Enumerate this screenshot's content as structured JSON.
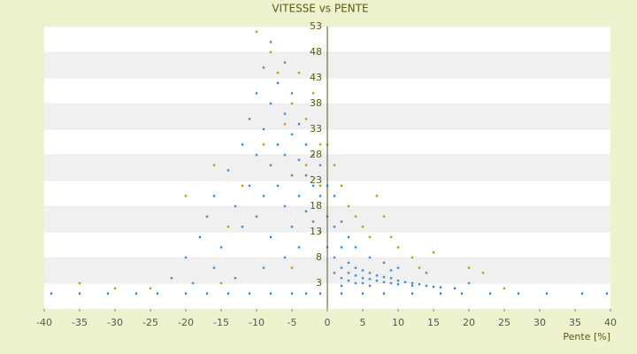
{
  "chart_data": {
    "type": "scatter",
    "title": "VITESSE vs PENTE",
    "x_label": "Pente [%]",
    "xlim": [
      -40,
      40
    ],
    "xticks": [
      -40,
      -35,
      -30,
      -25,
      -20,
      -15,
      -10,
      -5,
      0,
      5,
      10,
      15,
      20,
      25,
      30,
      35,
      40
    ],
    "ylim": [
      -2,
      53
    ],
    "yticks": [
      3,
      8,
      13,
      18,
      23,
      28,
      33,
      38,
      43,
      48,
      53
    ],
    "grid": true,
    "series": [
      {
        "color": "#3b8ad8",
        "x": [
          -39,
          -35,
          -31,
          -27,
          -24,
          -20,
          -17,
          -14,
          -11,
          -8,
          -5,
          -3,
          -1,
          2,
          5,
          8,
          12,
          16,
          19,
          23,
          27,
          31,
          36,
          39.5,
          -20,
          -18,
          -17,
          -16,
          -15,
          -14,
          -13,
          -12,
          -12,
          -11,
          -11,
          -10,
          -10,
          -10,
          -9,
          -9,
          -9,
          -8,
          -8,
          -8,
          -8,
          -7,
          -7,
          -7,
          -6,
          -6,
          -6,
          -6,
          -5,
          -5,
          -5,
          -5,
          -4,
          -4,
          -4,
          -3,
          -3,
          -3,
          -2,
          -2,
          -2,
          -1,
          -1,
          -1,
          0,
          0,
          0,
          1,
          1,
          1,
          2,
          2,
          -16,
          -13,
          -9,
          -19,
          -22,
          -6,
          -4,
          1,
          2,
          2,
          3,
          3,
          3,
          4,
          4,
          5,
          5,
          5,
          6,
          6,
          7,
          7,
          8,
          8,
          9,
          9,
          10,
          10,
          11,
          12,
          12,
          13,
          14,
          15,
          16,
          18,
          3,
          4,
          6,
          8,
          10,
          14,
          20,
          6,
          9,
          4,
          2
        ],
        "values": [
          1,
          1,
          1,
          1,
          1,
          1,
          1,
          1,
          1,
          1,
          1,
          1,
          1,
          1,
          1,
          1,
          1,
          1,
          1,
          1,
          1,
          1,
          1,
          1,
          8,
          12,
          16,
          20,
          10,
          25,
          18,
          30,
          14,
          35,
          22,
          40,
          28,
          16,
          45,
          33,
          20,
          50,
          38,
          26,
          12,
          42,
          30,
          22,
          46,
          36,
          28,
          18,
          40,
          32,
          24,
          14,
          34,
          27,
          20,
          30,
          24,
          17,
          28,
          22,
          15,
          26,
          20,
          13,
          22,
          16,
          10,
          20,
          14,
          8,
          15,
          10,
          6,
          4,
          6,
          3,
          4,
          8,
          10,
          5,
          6,
          4,
          7,
          5,
          3.5,
          6,
          4.5,
          5.5,
          4,
          3,
          5,
          3.8,
          4.5,
          3.5,
          4.2,
          3.2,
          4,
          3,
          3.5,
          2.8,
          3.2,
          3,
          2.5,
          2.8,
          2.5,
          2.3,
          2.2,
          2,
          12,
          10,
          8,
          7,
          6,
          5,
          3,
          2.5,
          5.5,
          3,
          2.5
        ]
      },
      {
        "color": "#a8a800",
        "x": [
          -10,
          -8,
          -7,
          -5,
          -4,
          -3,
          -2,
          -1,
          -6,
          -12,
          -14,
          -20,
          -16,
          -9,
          -3,
          -1,
          0,
          1,
          2,
          3,
          5,
          7,
          8,
          9,
          10,
          12,
          15,
          20,
          22,
          -30,
          -35,
          -15,
          -5,
          4,
          6,
          13,
          25,
          -25
        ],
        "values": [
          52,
          48,
          44,
          38,
          44,
          35,
          40,
          30,
          34,
          22,
          14,
          20,
          26,
          30,
          26,
          22,
          30,
          26,
          22,
          18,
          14,
          20,
          16,
          12,
          10,
          8,
          9,
          6,
          5,
          2,
          3,
          3,
          6,
          16,
          12,
          6,
          2,
          2
        ]
      }
    ]
  }
}
